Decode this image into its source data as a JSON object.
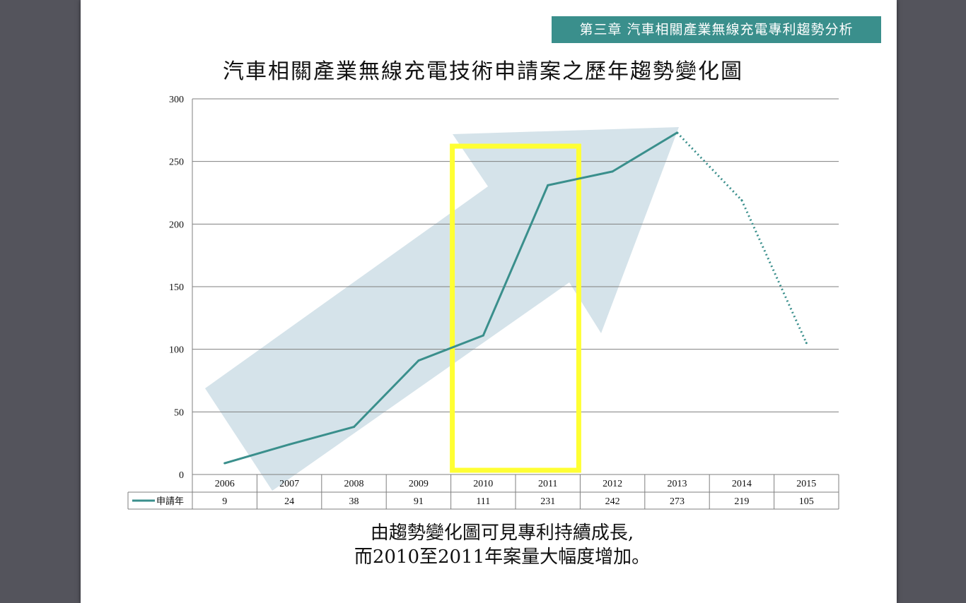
{
  "chapter_tag": "第三章 汽車相關產業無線充電專利趨勢分析",
  "caption": {
    "line1": "由趨勢變化圖可見專利持續成長,",
    "line2": "而2010至2011年案量大幅度增加。"
  },
  "colors": {
    "series": "#3a8f8c",
    "highlight": "#ffff33",
    "arrow": "#d5e3ea",
    "grid": "#7f7f7f",
    "tag_bg": "#3a8f8c"
  },
  "chart_data": {
    "type": "line",
    "title": "汽車相關產業無線充電技術申請案之歷年趨勢變化圖",
    "categories": [
      "2006",
      "2007",
      "2008",
      "2009",
      "2010",
      "2011",
      "2012",
      "2013",
      "2014",
      "2015"
    ],
    "series": [
      {
        "name": "申請年",
        "values": [
          9,
          24,
          38,
          91,
          111,
          231,
          242,
          273,
          219,
          105
        ],
        "dashed_from_index": 7
      }
    ],
    "ylim": [
      0,
      300
    ],
    "yticks": [
      0,
      50,
      100,
      150,
      200,
      250,
      300
    ],
    "grid": true,
    "data_table": true,
    "highlight_categories": [
      "2010",
      "2011"
    ],
    "trend_arrow": true
  }
}
